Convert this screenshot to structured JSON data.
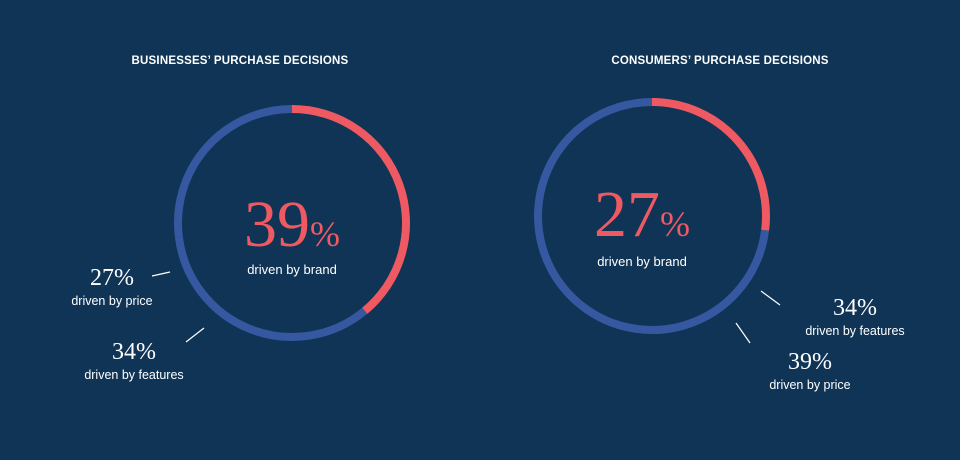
{
  "chart_data": [
    {
      "type": "pie",
      "title": "BUSINESSES’ PURCHASE DECISIONS",
      "center_value": "39",
      "center_unit": "%",
      "center_label": "driven by brand",
      "slices": [
        {
          "value": 39,
          "display": "39%",
          "label": "driven by brand",
          "color": "#ef5a62"
        },
        {
          "value": 34,
          "display": "34%",
          "label": "driven by features",
          "color": "#3558a0"
        },
        {
          "value": 27,
          "display": "27%",
          "label": "driven by price",
          "color": "#3558a0"
        }
      ]
    },
    {
      "type": "pie",
      "title": "CONSUMERS’ PURCHASE DECISIONS",
      "center_value": "27",
      "center_unit": "%",
      "center_label": "driven by brand",
      "slices": [
        {
          "value": 27,
          "display": "27%",
          "label": "driven by brand",
          "color": "#ef5a62"
        },
        {
          "value": 34,
          "display": "34%",
          "label": "driven by features",
          "color": "#3558a0"
        },
        {
          "value": 39,
          "display": "39%",
          "label": "driven by price",
          "color": "#3558a0"
        }
      ]
    }
  ],
  "colors": {
    "background": "#0f3456",
    "highlight": "#ef5a62",
    "ring": "#3558a0",
    "text": "#ffffff"
  }
}
